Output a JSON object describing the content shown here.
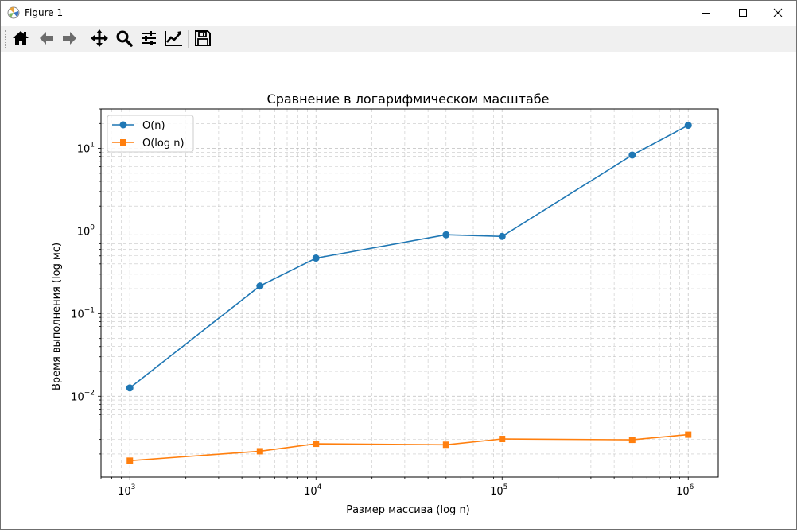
{
  "window": {
    "title": "Figure 1"
  },
  "toolbar": {
    "buttons": [
      {
        "name": "home-icon",
        "tooltip": "Home"
      },
      {
        "name": "back-arrow-icon",
        "tooltip": "Back"
      },
      {
        "name": "forward-arrow-icon",
        "tooltip": "Forward"
      },
      {
        "name": "pan-icon",
        "tooltip": "Pan"
      },
      {
        "name": "zoom-icon",
        "tooltip": "Zoom"
      },
      {
        "name": "subplots-icon",
        "tooltip": "Subplots"
      },
      {
        "name": "customize-icon",
        "tooltip": "Customize"
      },
      {
        "name": "save-icon",
        "tooltip": "Save"
      }
    ]
  },
  "chart_data": {
    "type": "line",
    "title": "Сравнение в логарифмическом масштабе",
    "xlabel": "Размер массива (log n)",
    "ylabel": "Время выполнения (log мс)",
    "xscale": "log",
    "yscale": "log",
    "xlim": [
      700,
      1450000
    ],
    "ylim": [
      0.00105,
      30
    ],
    "grid": true,
    "legend_position": "top-left",
    "x": [
      1000,
      5000,
      10000,
      50000,
      100000,
      500000,
      1000000
    ],
    "x_tick_labels": [
      {
        "base": "10",
        "exp": "3",
        "value": 1000
      },
      {
        "base": "10",
        "exp": "4",
        "value": 10000
      },
      {
        "base": "10",
        "exp": "5",
        "value": 100000
      },
      {
        "base": "10",
        "exp": "6",
        "value": 1000000
      }
    ],
    "y_tick_labels": [
      {
        "base": "10",
        "exp": "−2",
        "value": 0.01
      },
      {
        "base": "10",
        "exp": "−1",
        "value": 0.1
      },
      {
        "base": "10",
        "exp": "0",
        "value": 1
      },
      {
        "base": "10",
        "exp": "1",
        "value": 10
      }
    ],
    "series": [
      {
        "name": "O(n)",
        "marker": "circle",
        "color": "#1f77b4",
        "values": [
          0.0126,
          0.216,
          0.47,
          0.9,
          0.86,
          8.3,
          19.0
        ]
      },
      {
        "name": "O(log n)",
        "marker": "square",
        "color": "#ff7f0e",
        "values": [
          0.00166,
          0.00216,
          0.00266,
          0.00259,
          0.00304,
          0.00297,
          0.00343
        ]
      }
    ]
  }
}
